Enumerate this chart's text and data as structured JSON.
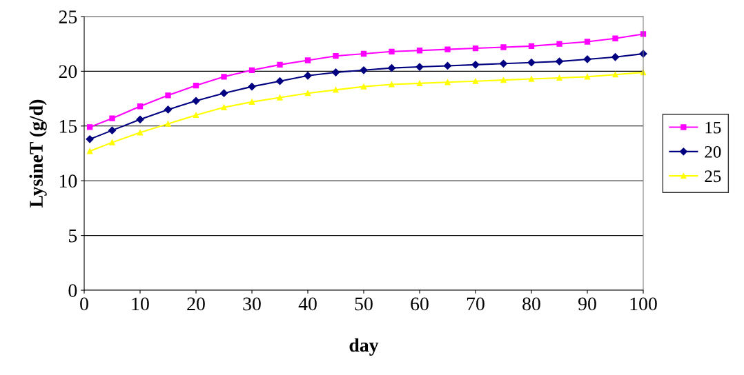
{
  "chart_data": {
    "type": "line",
    "xlabel": "day",
    "ylabel": "LysineT (g/d)",
    "x": [
      1,
      5,
      10,
      15,
      20,
      25,
      30,
      35,
      40,
      45,
      50,
      55,
      60,
      65,
      70,
      75,
      80,
      85,
      90,
      95,
      100
    ],
    "series": [
      {
        "name": "15",
        "color": "#ff00ff",
        "marker": "square",
        "values": [
          14.9,
          15.7,
          16.8,
          17.8,
          18.7,
          19.5,
          20.1,
          20.6,
          21.0,
          21.4,
          21.6,
          21.8,
          21.9,
          22.0,
          22.1,
          22.2,
          22.3,
          22.5,
          22.7,
          23.0,
          23.4
        ]
      },
      {
        "name": "20",
        "color": "#000080",
        "marker": "diamond",
        "values": [
          13.8,
          14.6,
          15.6,
          16.5,
          17.3,
          18.0,
          18.6,
          19.1,
          19.6,
          19.9,
          20.1,
          20.3,
          20.4,
          20.5,
          20.6,
          20.7,
          20.8,
          20.9,
          21.1,
          21.3,
          21.6
        ]
      },
      {
        "name": "25",
        "color": "#ffff00",
        "marker": "triangle",
        "values": [
          12.7,
          13.5,
          14.4,
          15.2,
          16.0,
          16.7,
          17.2,
          17.6,
          18.0,
          18.3,
          18.6,
          18.8,
          18.9,
          19.0,
          19.1,
          19.2,
          19.3,
          19.4,
          19.5,
          19.7,
          19.9
        ]
      }
    ],
    "xlim": [
      0,
      100
    ],
    "xticks": [
      0,
      10,
      20,
      30,
      40,
      50,
      60,
      70,
      80,
      90,
      100
    ],
    "ylim": [
      0,
      25
    ],
    "yticks": [
      0,
      5,
      10,
      15,
      20,
      25
    ],
    "grid": "y",
    "legend": "right",
    "line_style": "solid"
  }
}
